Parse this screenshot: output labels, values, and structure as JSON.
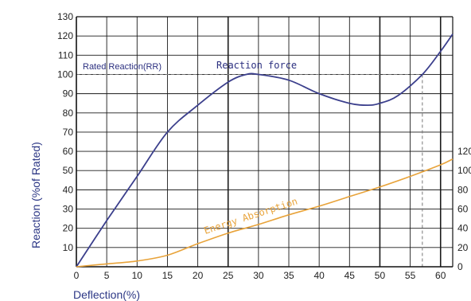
{
  "chart_data": {
    "type": "line",
    "xlabel": "Deflection(%)",
    "ylabel": "Reaction (%of Rated)",
    "x_ticks": [
      0,
      5,
      10,
      15,
      20,
      25,
      30,
      35,
      40,
      45,
      50,
      55,
      60
    ],
    "y_ticks": [
      10,
      20,
      30,
      40,
      50,
      60,
      70,
      80,
      90,
      100,
      110,
      120,
      130
    ],
    "right_ticks": [
      "0",
      "20",
      "40",
      "60",
      "80",
      "100",
      "120"
    ],
    "xlim": [
      0,
      62
    ],
    "ylim": [
      0,
      130
    ],
    "grid": true,
    "series": [
      {
        "name": "Reaction force",
        "color": "#3b3f8c",
        "x": [
          0,
          5,
          10,
          15,
          20,
          25,
          28,
          30,
          35,
          40,
          45,
          48,
          50,
          53,
          57,
          60,
          62
        ],
        "y": [
          0,
          24,
          47,
          70,
          84,
          96,
          100,
          100,
          97,
          90,
          85,
          84,
          85,
          89,
          100,
          112,
          121
        ]
      },
      {
        "name": "Energy Absorption",
        "color": "#e8a33a",
        "x": [
          0,
          5,
          10,
          15,
          20,
          25,
          30,
          35,
          40,
          45,
          50,
          55,
          60,
          62
        ],
        "y": [
          0,
          1.5,
          3,
          6,
          12,
          17.5,
          22,
          27,
          31.5,
          36.5,
          41.5,
          47,
          53,
          56
        ]
      }
    ],
    "annotations": {
      "rated_label": "Rated Reaction(RR)",
      "rated_value": 100,
      "rated_deflection": 57,
      "reaction_label": "Reaction force",
      "energy_label": "Energy Absorption"
    }
  }
}
